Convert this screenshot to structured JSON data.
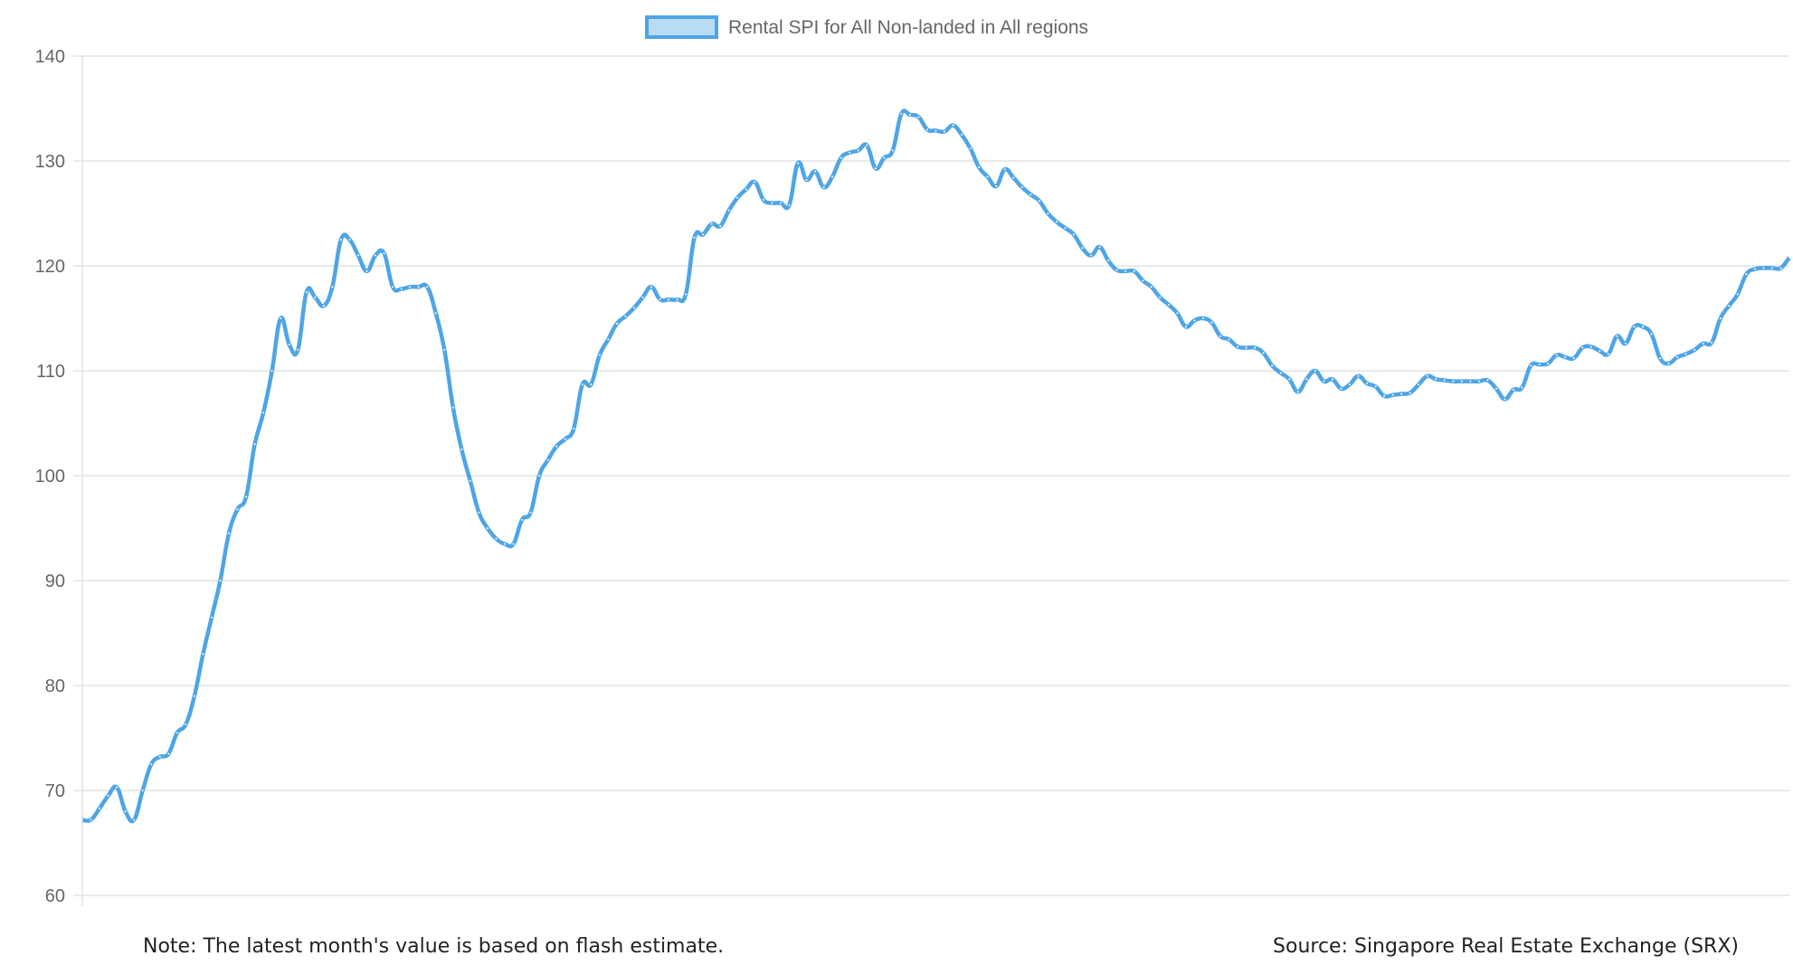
{
  "chart_data": {
    "type": "line",
    "title": "",
    "xlabel": "",
    "ylabel": "",
    "ylim": [
      60,
      140
    ],
    "yticks": [
      60,
      70,
      80,
      90,
      100,
      110,
      120,
      130,
      140
    ],
    "grid": true,
    "legend_position": "top",
    "series": [
      {
        "name": "Rental SPI for All Non-landed in All regions",
        "color": "#4ea5e6",
        "values": [
          67.2,
          67.2,
          68.3,
          69.5,
          70.3,
          68,
          67.2,
          70,
          72.5,
          73.2,
          73.5,
          75.5,
          76.3,
          79,
          83,
          86.5,
          90,
          94.5,
          96.8,
          98,
          103,
          106,
          110,
          115,
          112.5,
          112,
          117.5,
          117,
          116.2,
          118,
          122.5,
          122.5,
          121,
          119.5,
          121,
          121.2,
          118,
          117.8,
          118,
          118,
          118,
          115.5,
          112,
          106.5,
          102.5,
          99.5,
          96.5,
          95,
          94,
          93.5,
          93.5,
          95.8,
          96.5,
          100,
          101.5,
          102.8,
          103.5,
          104.5,
          108.7,
          108.7,
          111.5,
          113,
          114.5,
          115.2,
          116,
          117,
          118,
          116.8,
          116.8,
          116.8,
          117.3,
          122.7,
          123,
          124,
          123.8,
          125.3,
          126.5,
          127.3,
          128,
          126.3,
          126,
          126,
          125.8,
          129.8,
          128.2,
          129,
          127.5,
          128.5,
          130.3,
          130.8,
          131,
          131.5,
          129.3,
          130.3,
          131,
          134.5,
          134.4,
          134.2,
          133,
          132.9,
          132.8,
          133.4,
          132.5,
          131.2,
          129.4,
          128.5,
          127.6,
          129.2,
          128.4,
          127.5,
          126.8,
          126.2,
          125,
          124.2,
          123.6,
          123,
          121.7,
          121,
          121.8,
          120.5,
          119.6,
          119.5,
          119.5,
          118.6,
          118,
          117,
          116.3,
          115.5,
          114.2,
          114.8,
          115,
          114.6,
          113.3,
          113,
          112.3,
          112.2,
          112.2,
          111.7,
          110.5,
          109.8,
          109.2,
          108,
          109.2,
          110,
          109,
          109.2,
          108.3,
          108.7,
          109.5,
          108.8,
          108.5,
          107.6,
          107.7,
          107.8,
          107.9,
          108.7,
          109.5,
          109.2,
          109.1,
          109,
          109,
          109,
          109,
          109.1,
          108.3,
          107.3,
          108.2,
          108.4,
          110.5,
          110.6,
          110.7,
          111.5,
          111.3,
          111.2,
          112.2,
          112.3,
          111.9,
          111.6,
          113.3,
          112.6,
          114.2,
          114.2,
          113.5,
          111.2,
          110.7,
          111.3,
          111.6,
          112,
          112.6,
          112.7,
          115,
          116.2,
          117.3,
          119.2,
          119.7,
          119.8,
          119.8,
          119.8,
          120.8
        ]
      }
    ]
  },
  "footer": {
    "note": "Note: The latest month's value is based on flash estimate.",
    "source": "Source: Singapore Real Estate Exchange (SRX)"
  }
}
